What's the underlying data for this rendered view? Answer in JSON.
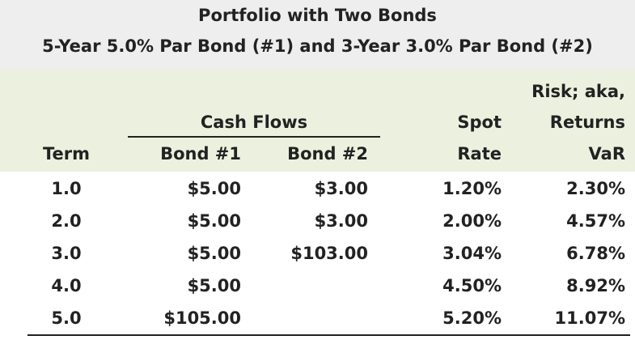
{
  "title": {
    "line1": "Portfolio with Two Bonds",
    "line2": "5-Year 5.0% Par Bond (#1) and 3-Year 3.0% Par Bond (#2)"
  },
  "headers": {
    "group_cash_flows": "Cash Flows",
    "term": "Term",
    "bond1": "Bond #1",
    "bond2": "Bond #2",
    "spot_line1": "Spot",
    "spot_line2": "Rate",
    "risk_line1": "Risk; aka,",
    "risk_line2": "Returns",
    "risk_line3": "VaR"
  },
  "rows": [
    {
      "term": "1.0",
      "bond1": "$5.00",
      "bond2": "$3.00",
      "spot": "1.20%",
      "var": "2.30%"
    },
    {
      "term": "2.0",
      "bond1": "$5.00",
      "bond2": "$3.00",
      "spot": "2.00%",
      "var": "4.57%"
    },
    {
      "term": "3.0",
      "bond1": "$5.00",
      "bond2": "$103.00",
      "spot": "3.04%",
      "var": "6.78%"
    },
    {
      "term": "4.0",
      "bond1": "$5.00",
      "bond2": "",
      "spot": "4.50%",
      "var": "8.92%"
    },
    {
      "term": "5.0",
      "bond1": "$105.00",
      "bond2": "",
      "spot": "5.20%",
      "var": "11.07%"
    }
  ],
  "colors": {
    "title_band": "#eeeeee",
    "header_band": "#ebf1de",
    "text": "#222222"
  }
}
